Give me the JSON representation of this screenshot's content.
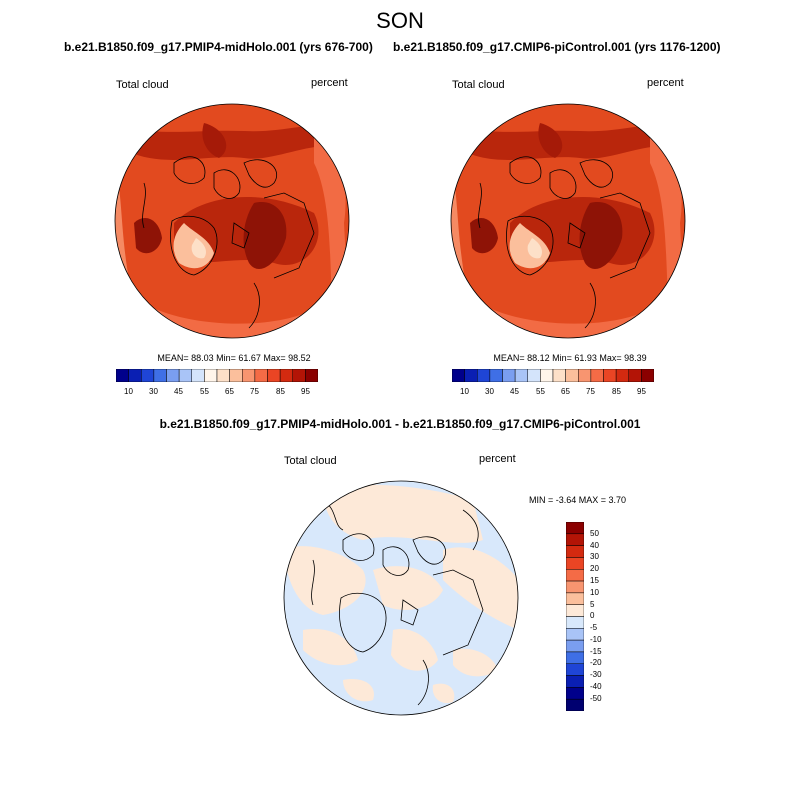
{
  "season": "SON",
  "panels": [
    {
      "title": "b.e21.B1850.f09_g17.PMIP4-midHolo.001 (yrs 676-700)",
      "variable_label": "Total cloud",
      "units": "percent",
      "stats": "MEAN=  88.03  Min=  61.67  Max=  98.52"
    },
    {
      "title": "b.e21.B1850.f09_g17.CMIP6-piControl.001 (yrs 1176-1200)",
      "variable_label": "Total cloud",
      "units": "percent",
      "stats": "MEAN=  88.12  Min=  61.93  Max=  98.39"
    },
    {
      "title": "b.e21.B1850.f09_g17.PMIP4-midHolo.001 - b.e21.B1850.f09_g17.CMIP6-piControl.001",
      "variable_label": "Total cloud",
      "units": "percent",
      "stats": "MIN =  -3.64 MAX =   3.70"
    }
  ],
  "colorbar_abs": {
    "labels": [
      "10",
      "30",
      "45",
      "55",
      "65",
      "75",
      "85",
      "95"
    ],
    "colors": [
      "#00008b",
      "#0a1fb3",
      "#1f45d6",
      "#3f6fe6",
      "#7a9ef0",
      "#a9c4f7",
      "#d4e4fb",
      "#fff5ea",
      "#fde0c8",
      "#fbbf9c",
      "#f89570",
      "#f46b46",
      "#ea4524",
      "#d32a10",
      "#b31406",
      "#8b0000"
    ]
  },
  "colorbar_diff": {
    "labels": [
      "50",
      "40",
      "30",
      "20",
      "15",
      "10",
      "5",
      "0",
      "-5",
      "-10",
      "-15",
      "-20",
      "-30",
      "-40",
      "-50"
    ],
    "colors": [
      "#8b0000",
      "#b31406",
      "#d32a10",
      "#ea4524",
      "#f46b46",
      "#f89570",
      "#fbbf9c",
      "#fde9d8",
      "#d8e8fb",
      "#a9c4f7",
      "#7a9ef0",
      "#3f6fe6",
      "#1f45d6",
      "#0a1fb3",
      "#00008b",
      "#000070"
    ]
  }
}
